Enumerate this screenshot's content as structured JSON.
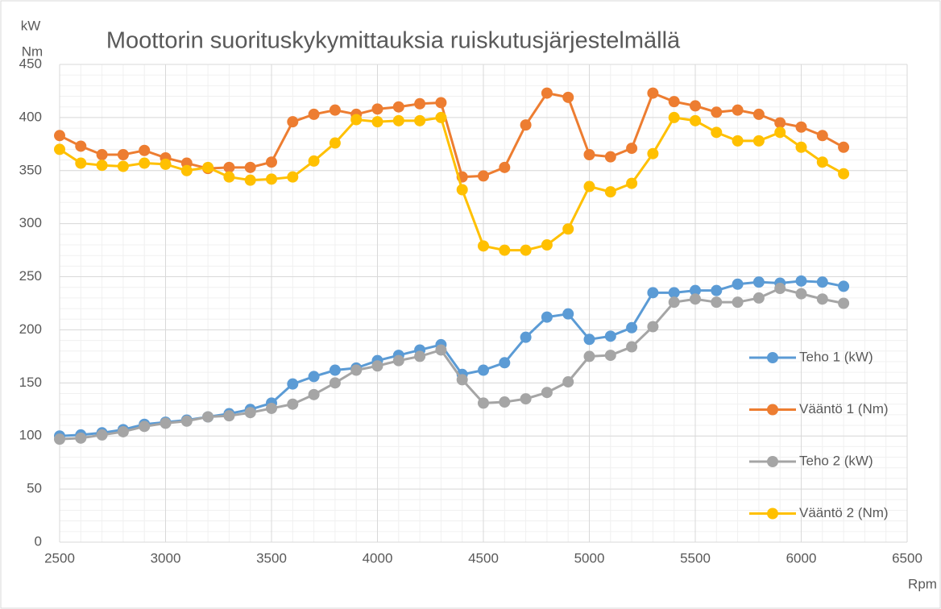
{
  "chart_data": {
    "type": "line",
    "title": "Moottorin suorituskykymittauksia ruiskutusjärjestelmällä",
    "ylabel": [
      "kW",
      "Nm"
    ],
    "xlabel": "Rpm",
    "x": [
      2500,
      2600,
      2700,
      2800,
      2900,
      3000,
      3100,
      3200,
      3300,
      3400,
      3500,
      3600,
      3700,
      3800,
      3900,
      4000,
      4100,
      4200,
      4300,
      4400,
      4500,
      4600,
      4700,
      4800,
      4900,
      5000,
      5100,
      5200,
      5300,
      5400,
      5500,
      5600,
      5700,
      5800,
      5900,
      6000,
      6100,
      6200
    ],
    "series": [
      {
        "name": "Teho 1 (kW)",
        "color": "#5b9bd5",
        "values": [
          100,
          101,
          103,
          106,
          111,
          113,
          115,
          118,
          121,
          125,
          131,
          149,
          156,
          162,
          164,
          171,
          176,
          181,
          186,
          158,
          162,
          169,
          193,
          212,
          215,
          191,
          194,
          202,
          235,
          235,
          237,
          237,
          243,
          245,
          244,
          246,
          245,
          241
        ]
      },
      {
        "name": "Vääntö 1 (Nm)",
        "color": "#ed7d31",
        "values": [
          383,
          373,
          365,
          365,
          369,
          362,
          357,
          352,
          353,
          353,
          358,
          396,
          403,
          407,
          403,
          408,
          410,
          413,
          414,
          344,
          345,
          353,
          393,
          423,
          419,
          365,
          363,
          371,
          423,
          415,
          411,
          405,
          407,
          403,
          395,
          391,
          383,
          372
        ]
      },
      {
        "name": "Teho 2 (kW)",
        "color": "#a5a5a5",
        "values": [
          97,
          98,
          101,
          104,
          109,
          112,
          114,
          118,
          119,
          122,
          126,
          130,
          139,
          150,
          162,
          166,
          171,
          175,
          181,
          153,
          131,
          132,
          135,
          141,
          151,
          175,
          176,
          184,
          203,
          226,
          229,
          226,
          226,
          230,
          239,
          234,
          229,
          225
        ]
      },
      {
        "name": "Vääntö 2 (Nm)",
        "color": "#ffc000",
        "values": [
          370,
          357,
          355,
          354,
          357,
          356,
          350,
          353,
          344,
          341,
          342,
          344,
          359,
          376,
          398,
          396,
          397,
          397,
          400,
          332,
          279,
          275,
          275,
          280,
          295,
          335,
          330,
          338,
          366,
          400,
          397,
          386,
          378,
          378,
          386,
          372,
          358,
          347
        ]
      }
    ],
    "xlim": [
      2500,
      6500
    ],
    "xticks": [
      2500,
      3000,
      3500,
      4000,
      4500,
      5000,
      5500,
      6000,
      6500
    ],
    "ylim": [
      0,
      450
    ],
    "yticks": [
      0,
      50,
      100,
      150,
      200,
      250,
      300,
      350,
      400,
      450
    ],
    "grid": true,
    "xminor": 100,
    "yminor": 10,
    "legend": "right"
  }
}
